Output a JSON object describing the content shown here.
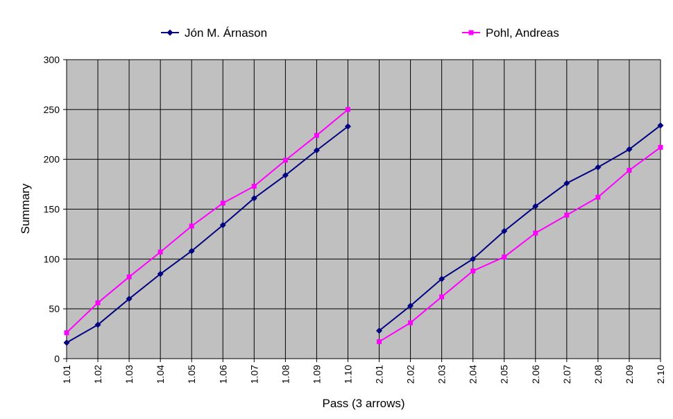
{
  "chart_data": {
    "type": "line",
    "xlabel": "Pass (3 arrows)",
    "ylabel": "Summary",
    "ylim": [
      0,
      300
    ],
    "yticks": [
      "0",
      "50",
      "100",
      "150",
      "200",
      "250",
      "300"
    ],
    "categories": [
      "1.01",
      "1.02",
      "1.03",
      "1.04",
      "1.05",
      "1.06",
      "1.07",
      "1.08",
      "1.09",
      "1.10",
      "2.01",
      "2.02",
      "2.03",
      "2.04",
      "2.05",
      "2.06",
      "2.07",
      "2.08",
      "2.09",
      "2.10"
    ],
    "grid": true,
    "legend_position": "top",
    "plot_background": "#c0c0c0",
    "series": [
      {
        "name": "Jón M. Árnason",
        "color": "#000080",
        "marker": "diamond",
        "values": [
          16,
          34,
          60,
          85,
          108,
          134,
          161,
          184,
          209,
          233,
          28,
          53,
          80,
          100,
          128,
          153,
          176,
          192,
          210,
          234
        ]
      },
      {
        "name": "Pohl, Andreas",
        "color": "#ff00ff",
        "marker": "square",
        "values": [
          26,
          56,
          82,
          107,
          133,
          156,
          173,
          199,
          224,
          250,
          17,
          36,
          62,
          88,
          102,
          126,
          144,
          162,
          189,
          212
        ]
      }
    ]
  }
}
